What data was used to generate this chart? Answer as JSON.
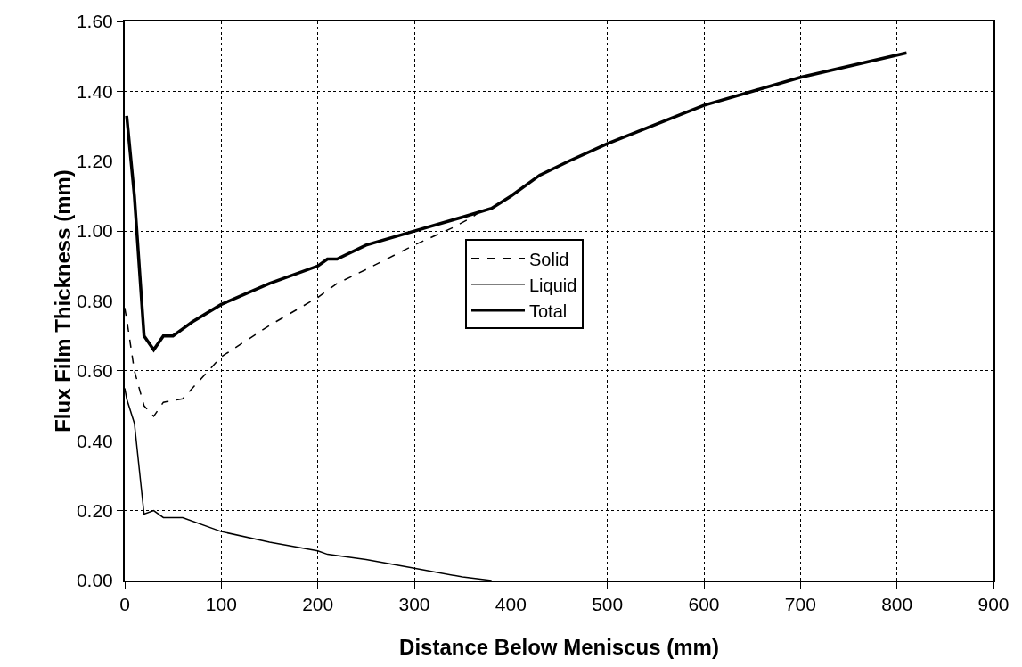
{
  "chart_data": {
    "type": "line",
    "xlabel": "Distance Below Meniscus (mm)",
    "ylabel": "Flux Film Thickness (mm)",
    "xlim": [
      0,
      900
    ],
    "xticks": [
      0,
      100,
      200,
      300,
      400,
      500,
      600,
      700,
      800,
      900
    ],
    "ylim": [
      0,
      1.6
    ],
    "yticks": [
      {
        "value": 0,
        "label": "0.00"
      },
      {
        "value": 0.2,
        "label": "0.20"
      },
      {
        "value": 0.4,
        "label": "0.40"
      },
      {
        "value": 0.6,
        "label": "0.60"
      },
      {
        "value": 0.8,
        "label": "0.80"
      },
      {
        "value": 1,
        "label": "1.00"
      },
      {
        "value": 1.2,
        "label": "1.20"
      },
      {
        "value": 1.4,
        "label": "1.40"
      },
      {
        "value": 1.6,
        "label": "1.60"
      }
    ],
    "grid": true,
    "legend": "center",
    "marker": "none",
    "series": [
      {
        "name": "Solid",
        "color": "#000000",
        "line_style": "dashed",
        "x": [
          0,
          3,
          10,
          20,
          30,
          40,
          60,
          80,
          100,
          150,
          200,
          220,
          250,
          300,
          340,
          360,
          370
        ],
        "values": [
          0.78,
          0.73,
          0.6,
          0.5,
          0.47,
          0.51,
          0.52,
          0.58,
          0.64,
          0.73,
          0.81,
          0.85,
          0.89,
          0.96,
          1.01,
          1.04,
          1.06
        ]
      },
      {
        "name": "Liquid",
        "color": "#000000",
        "line_style": "solid",
        "x": [
          0,
          2,
          10,
          20,
          30,
          40,
          60,
          100,
          150,
          200,
          210,
          250,
          300,
          350,
          380
        ],
        "values": [
          0.55,
          0.52,
          0.45,
          0.19,
          0.2,
          0.18,
          0.18,
          0.14,
          0.11,
          0.085,
          0.075,
          0.06,
          0.035,
          0.01,
          0
        ]
      },
      {
        "name": "Total",
        "color": "#000000",
        "line_style": "solid",
        "x": [
          2,
          10,
          20,
          30,
          40,
          50,
          60,
          70,
          100,
          150,
          200,
          210,
          220,
          250,
          300,
          350,
          380,
          400,
          430,
          460,
          500,
          600,
          700,
          810
        ],
        "values": [
          1.33,
          1.1,
          0.7,
          0.66,
          0.7,
          0.7,
          0.72,
          0.74,
          0.79,
          0.85,
          0.9,
          0.92,
          0.92,
          0.96,
          1,
          1.04,
          1.065,
          1.1,
          1.16,
          1.2,
          1.25,
          1.36,
          1.44,
          1.51
        ]
      }
    ]
  }
}
